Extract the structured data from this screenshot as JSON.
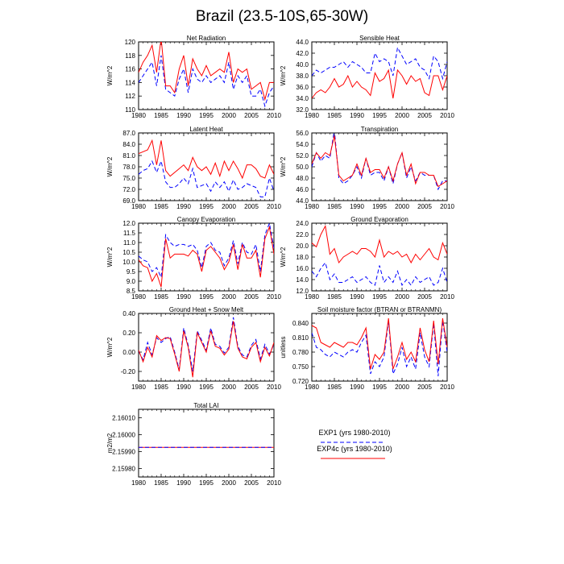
{
  "title": "Brazil (23.5-10S,65-30W)",
  "legend": {
    "exp1": {
      "label": "EXP1 (yrs 1980-2010)",
      "color": "#0000ff",
      "style": "dashed"
    },
    "exp4c": {
      "label": "EXP4c (yrs 1980-2010)",
      "color": "#ff0000",
      "style": "solid"
    }
  },
  "chart_data": [
    {
      "type": "line",
      "title": "Net Radiation",
      "ylabel": "W/m^2",
      "xlim": [
        1980,
        2010
      ],
      "xticks": [
        1980,
        1985,
        1990,
        1995,
        2000,
        2005,
        2010
      ],
      "ylim": [
        110,
        120
      ],
      "yticks": [
        "110",
        "112",
        "114",
        "116",
        "118",
        "120"
      ],
      "x": [
        1980,
        1981,
        1982,
        1983,
        1984,
        1985,
        1986,
        1987,
        1988,
        1989,
        1990,
        1991,
        1992,
        1993,
        1994,
        1995,
        1996,
        1997,
        1998,
        1999,
        2000,
        2001,
        2002,
        2003,
        2004,
        2005,
        2006,
        2007,
        2008,
        2009,
        2010
      ],
      "series": [
        {
          "key": "exp4c",
          "values": [
            115.5,
            117.0,
            118.0,
            119.5,
            115.5,
            120.5,
            113.5,
            113.5,
            112.5,
            116.0,
            118.0,
            113.5,
            117.5,
            116.0,
            115.0,
            116.5,
            115.0,
            115.5,
            116.0,
            115.5,
            118.5,
            114.0,
            116.0,
            115.5,
            116.0,
            113.0,
            113.5,
            114.0,
            111.5,
            114.0,
            114.0
          ]
        },
        {
          "key": "exp1",
          "values": [
            114.0,
            115.0,
            116.0,
            117.0,
            113.5,
            118.0,
            113.0,
            112.5,
            112.0,
            114.5,
            116.0,
            112.5,
            116.0,
            114.5,
            114.0,
            115.0,
            114.0,
            114.5,
            115.0,
            114.0,
            117.0,
            113.0,
            115.0,
            114.0,
            115.0,
            112.0,
            112.0,
            113.0,
            110.5,
            112.5,
            113.5
          ]
        }
      ]
    },
    {
      "type": "line",
      "title": "Sensible Heat",
      "ylabel": "W/m^2",
      "xlim": [
        1980,
        2010
      ],
      "xticks": [
        1980,
        1985,
        1990,
        1995,
        2000,
        2005,
        2010
      ],
      "ylim": [
        32,
        44
      ],
      "yticks": [
        "32.0",
        "34.0",
        "36.0",
        "38.0",
        "40.0",
        "42.0",
        "44.0"
      ],
      "x": [
        1980,
        1981,
        1982,
        1983,
        1984,
        1985,
        1986,
        1987,
        1988,
        1989,
        1990,
        1991,
        1992,
        1993,
        1994,
        1995,
        1996,
        1997,
        1998,
        1999,
        2000,
        2001,
        2002,
        2003,
        2004,
        2005,
        2006,
        2007,
        2008,
        2009,
        2010
      ],
      "series": [
        {
          "key": "exp4c",
          "values": [
            34.0,
            35.0,
            35.5,
            35.0,
            36.0,
            37.5,
            36.0,
            36.5,
            38.0,
            36.0,
            37.0,
            36.0,
            35.5,
            34.5,
            38.5,
            37.0,
            37.5,
            39.0,
            34.0,
            39.0,
            38.0,
            36.5,
            38.0,
            37.0,
            37.5,
            35.0,
            34.5,
            38.0,
            38.0,
            35.5,
            38.0
          ]
        },
        {
          "key": "exp1",
          "values": [
            38.0,
            39.0,
            38.5,
            39.0,
            39.5,
            39.5,
            40.0,
            40.5,
            39.5,
            40.5,
            40.0,
            39.5,
            38.5,
            38.5,
            42.0,
            40.5,
            41.0,
            40.5,
            38.0,
            43.0,
            41.5,
            40.0,
            40.5,
            41.0,
            39.5,
            39.0,
            37.5,
            41.5,
            40.5,
            37.5,
            40.5
          ]
        }
      ]
    },
    {
      "type": "line",
      "title": "Latent Heat",
      "ylabel": "W/m^2",
      "xlim": [
        1980,
        2010
      ],
      "xticks": [
        1980,
        1985,
        1990,
        1995,
        2000,
        2005,
        2010
      ],
      "ylim": [
        69,
        87
      ],
      "yticks": [
        "69.0",
        "72.0",
        "75.0",
        "78.0",
        "81.0",
        "84.0",
        "87.0"
      ],
      "x": [
        1980,
        1981,
        1982,
        1983,
        1984,
        1985,
        1986,
        1987,
        1988,
        1989,
        1990,
        1991,
        1992,
        1993,
        1994,
        1995,
        1996,
        1997,
        1998,
        1999,
        2000,
        2001,
        2002,
        2003,
        2004,
        2005,
        2006,
        2007,
        2008,
        2009,
        2010
      ],
      "series": [
        {
          "key": "exp4c",
          "values": [
            81.5,
            82.0,
            82.5,
            85.0,
            78.5,
            85.0,
            77.0,
            75.5,
            76.5,
            77.5,
            78.5,
            77.0,
            80.5,
            78.0,
            77.0,
            78.0,
            76.0,
            79.0,
            75.5,
            79.5,
            77.0,
            79.5,
            77.5,
            75.0,
            78.5,
            78.5,
            77.5,
            75.5,
            75.0,
            78.5,
            76.0
          ]
        },
        {
          "key": "exp1",
          "values": [
            76.0,
            77.0,
            77.5,
            79.5,
            76.5,
            79.5,
            74.0,
            72.5,
            72.5,
            73.5,
            75.0,
            73.5,
            77.5,
            72.5,
            73.0,
            73.5,
            71.5,
            74.0,
            72.5,
            74.0,
            71.5,
            74.5,
            72.0,
            72.5,
            73.5,
            73.0,
            72.5,
            70.0,
            70.0,
            75.0,
            71.5
          ]
        }
      ]
    },
    {
      "type": "line",
      "title": "Transpiration",
      "ylabel": "W/m^2",
      "xlim": [
        1980,
        2010
      ],
      "xticks": [
        1980,
        1985,
        1990,
        1995,
        2000,
        2005,
        2010
      ],
      "ylim": [
        44,
        56
      ],
      "yticks": [
        "44.0",
        "46.0",
        "48.0",
        "50.0",
        "52.0",
        "54.0",
        "56.0"
      ],
      "x": [
        1980,
        1981,
        1982,
        1983,
        1984,
        1985,
        1986,
        1987,
        1988,
        1989,
        1990,
        1991,
        1992,
        1993,
        1994,
        1995,
        1996,
        1997,
        1998,
        1999,
        2000,
        2001,
        2002,
        2003,
        2004,
        2005,
        2006,
        2007,
        2008,
        2009,
        2010
      ],
      "series": [
        {
          "key": "exp4c",
          "values": [
            50.5,
            52.5,
            51.5,
            52.5,
            52.0,
            55.5,
            48.5,
            47.5,
            48.0,
            48.5,
            50.5,
            48.5,
            51.5,
            49.0,
            49.5,
            49.5,
            48.0,
            50.0,
            47.5,
            50.5,
            52.5,
            48.5,
            50.5,
            47.0,
            49.0,
            49.0,
            48.5,
            48.5,
            46.5,
            47.0,
            47.5
          ]
        },
        {
          "key": "exp1",
          "values": [
            50.0,
            52.5,
            51.0,
            52.0,
            51.5,
            56.5,
            48.0,
            47.0,
            47.5,
            48.5,
            50.0,
            48.0,
            51.5,
            48.5,
            49.0,
            49.0,
            47.5,
            50.0,
            47.0,
            50.5,
            52.5,
            48.0,
            50.0,
            47.5,
            49.0,
            48.5,
            48.5,
            48.5,
            46.0,
            47.5,
            47.5
          ]
        }
      ]
    },
    {
      "type": "line",
      "title": "Canopy Evaporation",
      "ylabel": "W/m^2",
      "xlim": [
        1980,
        2010
      ],
      "xticks": [
        1980,
        1985,
        1990,
        1995,
        2000,
        2005,
        2010
      ],
      "ylim": [
        8.5,
        12.0
      ],
      "yticks": [
        "8.5",
        "9.0",
        "9.5",
        "10.0",
        "10.5",
        "11.0",
        "11.5",
        "12.0"
      ],
      "x": [
        1980,
        1981,
        1982,
        1983,
        1984,
        1985,
        1986,
        1987,
        1988,
        1989,
        1990,
        1991,
        1992,
        1993,
        1994,
        1995,
        1996,
        1997,
        1998,
        1999,
        2000,
        2001,
        2002,
        2003,
        2004,
        2005,
        2006,
        2007,
        2008,
        2009,
        2010
      ],
      "series": [
        {
          "key": "exp4c",
          "values": [
            10.1,
            9.8,
            9.7,
            9.0,
            9.4,
            8.7,
            11.2,
            10.2,
            10.4,
            10.4,
            10.4,
            10.3,
            10.6,
            10.4,
            9.5,
            10.6,
            10.8,
            10.5,
            10.2,
            9.6,
            10.0,
            10.9,
            9.6,
            10.9,
            10.2,
            10.2,
            10.6,
            9.2,
            11.2,
            11.8,
            10.4
          ]
        },
        {
          "key": "exp1",
          "values": [
            10.3,
            10.1,
            10.0,
            9.5,
            9.7,
            9.2,
            11.4,
            11.0,
            10.8,
            10.9,
            10.9,
            10.8,
            10.9,
            10.6,
            9.7,
            10.8,
            11.0,
            10.6,
            10.5,
            9.8,
            10.2,
            11.1,
            9.9,
            11.0,
            10.5,
            10.4,
            10.9,
            9.5,
            11.4,
            12.0,
            10.7
          ]
        }
      ]
    },
    {
      "type": "line",
      "title": "Ground Evaporation",
      "ylabel": "W/m^2",
      "xlim": [
        1980,
        2010
      ],
      "xticks": [
        1980,
        1985,
        1990,
        1995,
        2000,
        2005,
        2010
      ],
      "ylim": [
        12,
        24
      ],
      "yticks": [
        "12.0",
        "14.0",
        "16.0",
        "18.0",
        "20.0",
        "22.0",
        "24.0"
      ],
      "x": [
        1980,
        1981,
        1982,
        1983,
        1984,
        1985,
        1986,
        1987,
        1988,
        1989,
        1990,
        1991,
        1992,
        1993,
        1994,
        1995,
        1996,
        1997,
        1998,
        1999,
        2000,
        2001,
        2002,
        2003,
        2004,
        2005,
        2006,
        2007,
        2008,
        2009,
        2010
      ],
      "series": [
        {
          "key": "exp4c",
          "values": [
            20.5,
            19.8,
            22.0,
            23.5,
            18.5,
            19.5,
            17.0,
            18.0,
            18.5,
            19.0,
            18.5,
            19.5,
            19.5,
            19.0,
            18.0,
            21.0,
            18.0,
            19.0,
            18.5,
            19.0,
            18.0,
            18.5,
            17.0,
            18.5,
            17.5,
            18.5,
            19.5,
            18.0,
            17.5,
            20.5,
            18.5
          ]
        },
        {
          "key": "exp1",
          "values": [
            15.5,
            14.5,
            16.0,
            17.0,
            14.0,
            15.0,
            13.5,
            13.5,
            14.0,
            14.5,
            13.5,
            14.0,
            14.5,
            13.5,
            13.0,
            16.5,
            13.5,
            14.5,
            13.5,
            15.5,
            13.0,
            14.0,
            13.0,
            14.5,
            13.5,
            14.0,
            14.5,
            13.0,
            13.5,
            16.0,
            13.5
          ]
        }
      ]
    },
    {
      "type": "line",
      "title": "Ground Heat + Snow Melt",
      "ylabel": "W/m^2",
      "xlim": [
        1980,
        2010
      ],
      "xticks": [
        1980,
        1985,
        1990,
        1995,
        2000,
        2005,
        2010
      ],
      "ylim": [
        -0.3,
        0.4
      ],
      "yticks": [
        "-0.20",
        "0.00",
        "0.20",
        "0.40"
      ],
      "ytickvals": [
        -0.2,
        0.0,
        0.2,
        0.4
      ],
      "x": [
        1980,
        1981,
        1982,
        1983,
        1984,
        1985,
        1986,
        1987,
        1988,
        1989,
        1990,
        1991,
        1992,
        1993,
        1994,
        1995,
        1996,
        1997,
        1998,
        1999,
        2000,
        2001,
        2002,
        2003,
        2004,
        2005,
        2006,
        2007,
        2008,
        2009,
        2010
      ],
      "series": [
        {
          "key": "exp4c",
          "values": [
            0.02,
            -0.1,
            0.05,
            -0.05,
            0.17,
            0.12,
            0.15,
            0.14,
            -0.02,
            -0.2,
            0.22,
            0.05,
            -0.26,
            0.2,
            0.1,
            0.0,
            0.22,
            0.06,
            0.04,
            -0.03,
            0.03,
            0.32,
            0.04,
            -0.05,
            -0.07,
            0.05,
            0.1,
            -0.1,
            0.05,
            -0.04,
            0.1
          ]
        },
        {
          "key": "exp1",
          "values": [
            0.01,
            -0.08,
            0.1,
            -0.03,
            0.15,
            0.1,
            0.14,
            0.16,
            0.0,
            -0.18,
            0.25,
            0.07,
            -0.2,
            0.22,
            0.12,
            0.02,
            0.25,
            0.08,
            0.06,
            -0.01,
            0.05,
            0.36,
            0.06,
            -0.03,
            -0.05,
            0.07,
            0.13,
            -0.07,
            0.08,
            -0.02,
            0.08
          ]
        }
      ]
    },
    {
      "type": "line",
      "title": "Soil moisture factor (BTRAN or BTRANMN)",
      "ylabel": "unitless",
      "xlim": [
        1980,
        2010
      ],
      "xticks": [
        1980,
        1985,
        1990,
        1995,
        2000,
        2005,
        2010
      ],
      "ylim": [
        0.72,
        0.86
      ],
      "yticks": [
        "0.720",
        "0.750",
        "0.780",
        "0.810",
        "0.840"
      ],
      "ytickvals": [
        0.72,
        0.75,
        0.78,
        0.81,
        0.84
      ],
      "x": [
        1980,
        1981,
        1982,
        1983,
        1984,
        1985,
        1986,
        1987,
        1988,
        1989,
        1990,
        1991,
        1992,
        1993,
        1994,
        1995,
        1996,
        1997,
        1998,
        1999,
        2000,
        2001,
        2002,
        2003,
        2004,
        2005,
        2006,
        2007,
        2008,
        2009,
        2010
      ],
      "series": [
        {
          "key": "exp4c",
          "values": [
            0.835,
            0.83,
            0.8,
            0.795,
            0.79,
            0.8,
            0.795,
            0.79,
            0.8,
            0.8,
            0.795,
            0.81,
            0.83,
            0.745,
            0.775,
            0.765,
            0.78,
            0.85,
            0.745,
            0.77,
            0.8,
            0.765,
            0.78,
            0.76,
            0.83,
            0.785,
            0.76,
            0.845,
            0.755,
            0.85,
            0.79
          ]
        },
        {
          "key": "exp1",
          "values": [
            0.82,
            0.79,
            0.785,
            0.775,
            0.77,
            0.78,
            0.775,
            0.77,
            0.78,
            0.785,
            0.78,
            0.8,
            0.815,
            0.735,
            0.76,
            0.75,
            0.77,
            0.845,
            0.735,
            0.755,
            0.79,
            0.75,
            0.77,
            0.745,
            0.82,
            0.77,
            0.75,
            0.84,
            0.73,
            0.845,
            0.78
          ]
        }
      ]
    },
    {
      "type": "line",
      "title": "Total LAI",
      "ylabel": "m2/m2",
      "xlim": [
        1980,
        2010
      ],
      "xticks": [
        1980,
        1985,
        1990,
        1995,
        2000,
        2005,
        2010
      ],
      "ylim": [
        2.15975,
        2.16015
      ],
      "yticks": [
        "2.15980",
        "2.15990",
        "2.16000",
        "2.16010"
      ],
      "ytickvals": [
        2.1598,
        2.1599,
        2.16,
        2.1601
      ],
      "x": [
        1980,
        2010
      ],
      "series": [
        {
          "key": "exp4c",
          "values": [
            2.159925,
            2.159925
          ]
        },
        {
          "key": "exp1",
          "values": [
            2.159925,
            2.159925
          ]
        }
      ]
    }
  ]
}
